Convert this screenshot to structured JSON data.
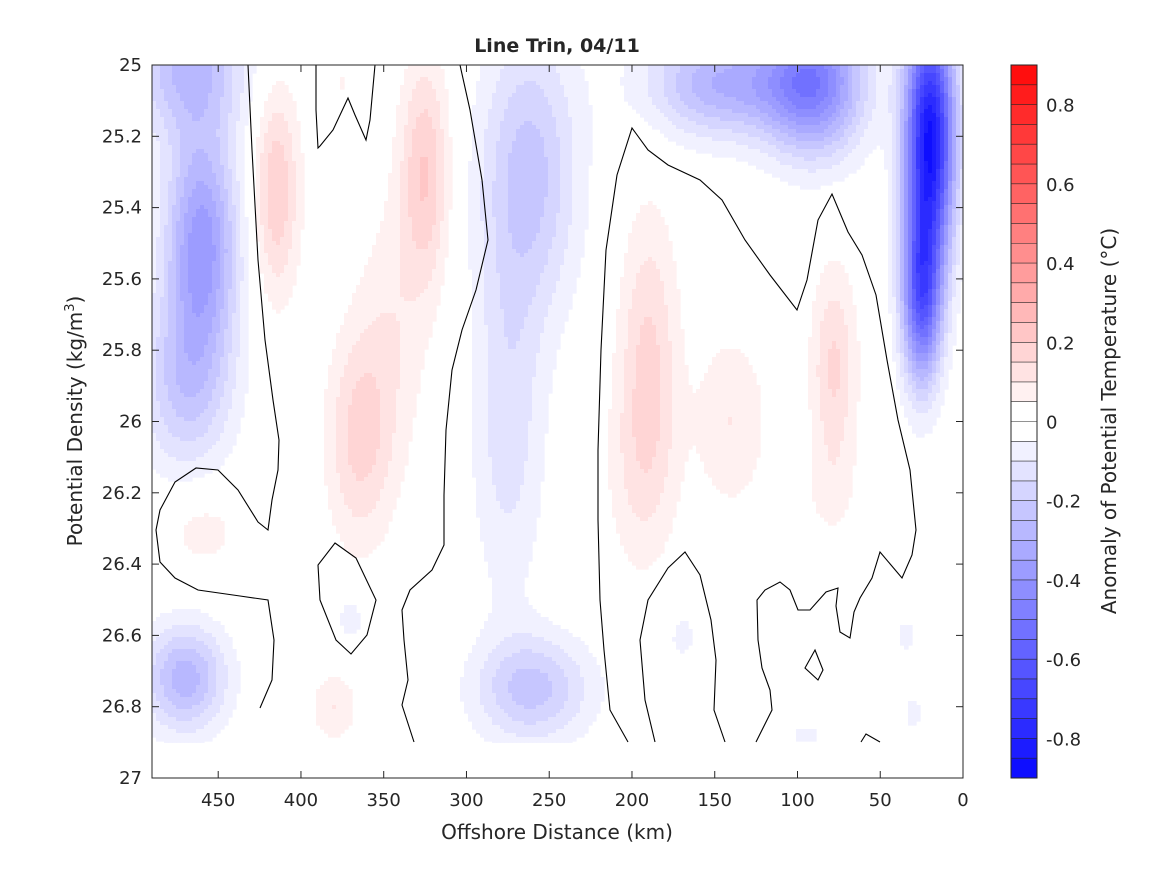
{
  "chart_data": {
    "type": "heatmap",
    "subtype": "filled-contour",
    "title": "Line Trin, 04/11",
    "xlabel": "Offshore Distance (km)",
    "ylabel": "Potential Density (kg/m",
    "ylabel_sup": "3",
    "ylabel_end": ")",
    "xlim": [
      490,
      0
    ],
    "x_reversed": true,
    "ylim": [
      25,
      27
    ],
    "y_reversed": true,
    "xticks": [
      450,
      400,
      350,
      300,
      250,
      200,
      150,
      100,
      50,
      0
    ],
    "xtick_labels": [
      "450",
      "400",
      "350",
      "300",
      "250",
      "200",
      "150",
      "100",
      "50",
      "0"
    ],
    "yticks": [
      25,
      25.2,
      25.4,
      25.6,
      25.8,
      26,
      26.2,
      26.4,
      26.6,
      26.8,
      27
    ],
    "ytick_labels": [
      "25",
      "25.2",
      "25.4",
      "25.6",
      "25.8",
      "26",
      "26.2",
      "26.4",
      "26.6",
      "26.8",
      "27"
    ],
    "data_ymax": 26.9,
    "colorbar": {
      "label": "Anomaly of Potential Temperature (°C)",
      "range": [
        -0.9,
        0.9
      ],
      "step": 0.05,
      "ticks": [
        0.8,
        0.6,
        0.4,
        0.2,
        0,
        -0.2,
        -0.4,
        -0.6,
        -0.8
      ],
      "tick_labels": [
        "0.8",
        "0.6",
        "0.4",
        "0.2",
        "0",
        "-0.2",
        "-0.4",
        "-0.6",
        "-0.8"
      ],
      "colormap": "blue-white-red",
      "neg_color": "#0000ff",
      "pos_color": "#ff0000",
      "mid_color": "#ffffff"
    },
    "features": [
      {
        "x": 460,
        "y": 25.5,
        "value": -0.38,
        "sx": 22,
        "sy": 0.32
      },
      {
        "x": 468,
        "y": 25.0,
        "value": -0.25,
        "sx": 35,
        "sy": 0.2
      },
      {
        "x": 470,
        "y": 25.9,
        "value": -0.2,
        "sx": 28,
        "sy": 0.25
      },
      {
        "x": 470,
        "y": 26.72,
        "value": -0.28,
        "sx": 25,
        "sy": 0.15
      },
      {
        "x": 415,
        "y": 25.35,
        "value": 0.2,
        "sx": 14,
        "sy": 0.3
      },
      {
        "x": 375,
        "y": 25.05,
        "value": 0.05,
        "sx": 8,
        "sy": 0.2
      },
      {
        "x": 325,
        "y": 25.3,
        "value": 0.2,
        "sx": 15,
        "sy": 0.32
      },
      {
        "x": 365,
        "y": 26.05,
        "value": 0.16,
        "sx": 20,
        "sy": 0.3
      },
      {
        "x": 345,
        "y": 25.75,
        "value": 0.08,
        "sx": 22,
        "sy": 0.4
      },
      {
        "x": 460,
        "y": 26.3,
        "value": 0.08,
        "sx": 25,
        "sy": 0.12
      },
      {
        "x": 380,
        "y": 26.8,
        "value": 0.1,
        "sx": 14,
        "sy": 0.1
      },
      {
        "x": 370,
        "y": 26.55,
        "value": -0.08,
        "sx": 10,
        "sy": 0.08
      },
      {
        "x": 262,
        "y": 25.3,
        "value": -0.22,
        "sx": 30,
        "sy": 0.4
      },
      {
        "x": 275,
        "y": 26.0,
        "value": -0.13,
        "sx": 22,
        "sy": 0.5
      },
      {
        "x": 260,
        "y": 26.75,
        "value": -0.22,
        "sx": 35,
        "sy": 0.15
      },
      {
        "x": 190,
        "y": 25.8,
        "value": 0.15,
        "sx": 18,
        "sy": 0.4
      },
      {
        "x": 195,
        "y": 26.15,
        "value": 0.08,
        "sx": 22,
        "sy": 0.3
      },
      {
        "x": 140,
        "y": 26.0,
        "value": 0.1,
        "sx": 22,
        "sy": 0.25
      },
      {
        "x": 78,
        "y": 25.85,
        "value": 0.16,
        "sx": 14,
        "sy": 0.28
      },
      {
        "x": 80,
        "y": 26.2,
        "value": 0.05,
        "sx": 18,
        "sy": 0.15
      },
      {
        "x": 170,
        "y": 26.6,
        "value": -0.06,
        "sx": 15,
        "sy": 0.12
      },
      {
        "x": 145,
        "y": 25.05,
        "value": -0.3,
        "sx": 45,
        "sy": 0.15
      },
      {
        "x": 90,
        "y": 25.05,
        "value": -0.45,
        "sx": 30,
        "sy": 0.2
      },
      {
        "x": 20,
        "y": 25.2,
        "value": -0.85,
        "sx": 15,
        "sy": 0.35
      },
      {
        "x": 25,
        "y": 25.65,
        "value": -0.55,
        "sx": 12,
        "sy": 0.25
      },
      {
        "x": 35,
        "y": 26.6,
        "value": -0.06,
        "sx": 10,
        "sy": 0.08
      },
      {
        "x": 30,
        "y": 26.82,
        "value": -0.06,
        "sx": 10,
        "sy": 0.08
      },
      {
        "x": 95,
        "y": 26.88,
        "value": -0.06,
        "sx": 15,
        "sy": 0.05
      }
    ]
  }
}
